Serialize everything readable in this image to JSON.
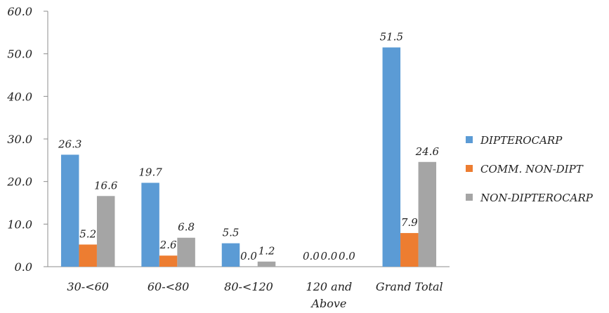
{
  "chart_data": {
    "type": "bar",
    "title": "",
    "xlabel": "",
    "ylabel": "",
    "ylim": [
      0,
      60
    ],
    "yticks": [
      "0.0",
      "10.0",
      "20.0",
      "30.0",
      "40.0",
      "50.0",
      "60.0"
    ],
    "categories": [
      "30-<60",
      "60-<80",
      "80-<120",
      "120 and Above",
      "Grand Total"
    ],
    "series": [
      {
        "name": "DIPTEROCARP",
        "color": "#5B9BD5",
        "values": [
          26.3,
          19.7,
          5.5,
          0.0,
          51.5
        ],
        "labels": [
          "26.3",
          "19.7",
          "5.5",
          "0.0",
          "51.5"
        ]
      },
      {
        "name": "COMM. NON-DIPT",
        "color": "#ED7D31",
        "values": [
          5.2,
          2.6,
          0.0,
          0.0,
          7.9
        ],
        "labels": [
          "5.2",
          "2.6",
          "0.0",
          "0.0",
          "7.9"
        ]
      },
      {
        "name": "NON-DIPTEROCARP",
        "color": "#A5A5A5",
        "values": [
          16.6,
          6.8,
          1.2,
          0.0,
          24.6
        ],
        "labels": [
          "16.6",
          "6.8",
          "1.2",
          "0.0",
          "24.6"
        ]
      }
    ],
    "grid": false,
    "legend": "right",
    "data_labels": true
  }
}
